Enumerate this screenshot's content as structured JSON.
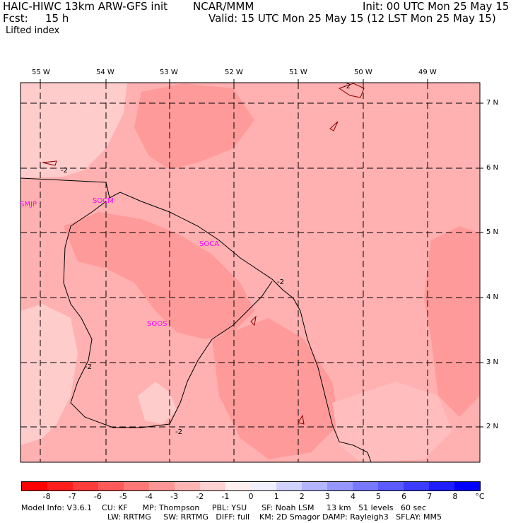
{
  "header": {
    "model": "HAIC-HIWC 13km ARW-GFS init",
    "org": "NCAR/MMM",
    "init": "Init: 00 UTC Mon 25 May 15",
    "fcst_label": "Fcst:",
    "fcst_value": "15 h",
    "valid": "Valid: 15 UTC Mon 25 May 15 (12 LST Mon 25 May 15)",
    "field": "Lifted index"
  },
  "map": {
    "lon_labels": [
      "55 W",
      "54 W",
      "53 W",
      "52 W",
      "51 W",
      "50 W",
      "49 W"
    ],
    "lat_labels": [
      "7 N",
      "6 N",
      "5 N",
      "4 N",
      "3 N",
      "2 N"
    ],
    "stations": [
      "SMJP",
      "SOCM",
      "SOCA",
      "SOOS"
    ],
    "contour_label": "-2"
  },
  "colorbar": {
    "unit": "°C",
    "ticks": [
      "-8",
      "-7",
      "-6",
      "-5",
      "-4",
      "-3",
      "-2",
      "-1",
      "0",
      "1",
      "2",
      "3",
      "4",
      "5",
      "6",
      "7",
      "8"
    ],
    "colors": [
      "#ff0000",
      "#ff1e1e",
      "#ff3c3c",
      "#ff5a5a",
      "#ff7878",
      "#ff9696",
      "#ffb4b4",
      "#ffd2d2",
      "#fff0f0",
      "#f0f0ff",
      "#d2d2ff",
      "#b4b4ff",
      "#9696ff",
      "#7878ff",
      "#5a5aff",
      "#3c3cff",
      "#1e1eff",
      "#0000ff"
    ]
  },
  "model_info": {
    "line1": "Model Info: V3.6.1    CU: KF      MP: Thompson     PBL: YSU      SF: Noah LSM     13 km   51 levels   60 sec",
    "line2": "LW: RRTMG     SW: RRTMG   DIFF: full    KM: 2D Smagor DAMP: Rayleigh3   SFLAY: MM5"
  }
}
